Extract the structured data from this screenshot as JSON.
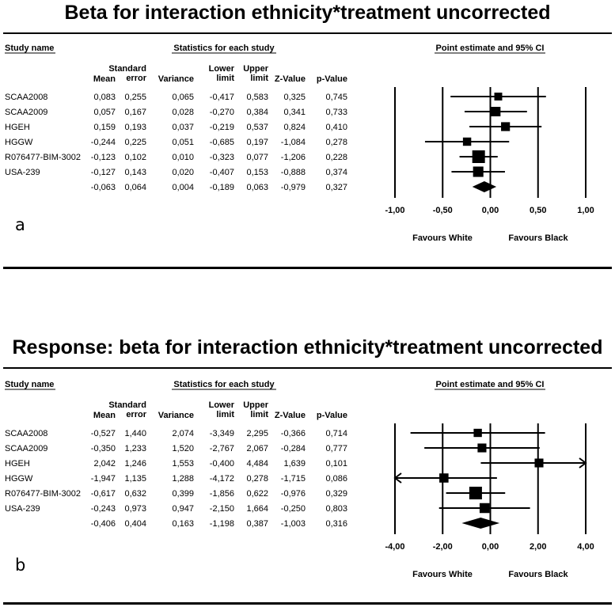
{
  "panels": [
    {
      "title": "Beta for interaction ethnicity*treatment uncorrected",
      "label": "a",
      "headers": {
        "study_name": "Study name",
        "stats_group": "Statistics for each study",
        "plot_group": "Point estimate and 95% CI",
        "columns": [
          {
            "lines": [
              "Mean"
            ]
          },
          {
            "lines": [
              "Standard",
              "error"
            ]
          },
          {
            "lines": [
              "Variance"
            ]
          },
          {
            "lines": [
              "Lower",
              "limit"
            ]
          },
          {
            "lines": [
              "Upper",
              "limit"
            ]
          },
          {
            "lines": [
              "Z-Value"
            ]
          },
          {
            "lines": [
              "p-Value"
            ]
          }
        ]
      },
      "rows": [
        {
          "study": "SCAA2008",
          "values": [
            "0,083",
            "0,255",
            "0,065",
            "-0,417",
            "0,583",
            "0,325",
            "0,745"
          ]
        },
        {
          "study": "SCAA2009",
          "values": [
            "0,057",
            "0,167",
            "0,028",
            "-0,270",
            "0,384",
            "0,341",
            "0,733"
          ]
        },
        {
          "study": "HGEH",
          "values": [
            "0,159",
            "0,193",
            "0,037",
            "-0,219",
            "0,537",
            "0,824",
            "0,410"
          ]
        },
        {
          "study": "HGGW",
          "values": [
            "-0,244",
            "0,225",
            "0,051",
            "-0,685",
            "0,197",
            "-1,084",
            "0,278"
          ]
        },
        {
          "study": "R076477-BIM-3002",
          "values": [
            "-0,123",
            "0,102",
            "0,010",
            "-0,323",
            "0,077",
            "-1,206",
            "0,228"
          ]
        },
        {
          "study": "USA-239",
          "values": [
            "-0,127",
            "0,143",
            "0,020",
            "-0,407",
            "0,153",
            "-0,888",
            "0,374"
          ]
        }
      ],
      "summary": {
        "values": [
          "-0,063",
          "0,064",
          "0,004",
          "-0,189",
          "0,063",
          "-0,979",
          "0,327"
        ]
      },
      "chart_data": {
        "type": "forest",
        "title": "Point estimate and 95% CI",
        "xlim": [
          -1,
          1
        ],
        "ticks": [
          -1,
          -0.5,
          0,
          0.5,
          1
        ],
        "tick_labels": [
          "-1,00",
          "-0,50",
          "0,00",
          "0,50",
          "1,00"
        ],
        "favours_left": "Favours White",
        "favours_right": "Favours Black",
        "studies": [
          {
            "name": "SCAA2008",
            "est": 0.083,
            "lo": -0.417,
            "hi": 0.583,
            "weight": 0.065
          },
          {
            "name": "SCAA2009",
            "est": 0.057,
            "lo": -0.27,
            "hi": 0.384,
            "weight": 0.028
          },
          {
            "name": "HGEH",
            "est": 0.159,
            "lo": -0.219,
            "hi": 0.537,
            "weight": 0.037
          },
          {
            "name": "HGGW",
            "est": -0.244,
            "lo": -0.685,
            "hi": 0.197,
            "weight": 0.051
          },
          {
            "name": "R076477-BIM-3002",
            "est": -0.123,
            "lo": -0.323,
            "hi": 0.077,
            "weight": 0.01
          },
          {
            "name": "USA-239",
            "est": -0.127,
            "lo": -0.407,
            "hi": 0.153,
            "weight": 0.02
          }
        ],
        "summary": {
          "est": -0.063,
          "lo": -0.189,
          "hi": 0.063
        }
      }
    },
    {
      "title": "Response: beta for interaction ethnicity*treatment uncorrected",
      "label": "b",
      "headers": {
        "study_name": "Study name",
        "stats_group": "Statistics for each study",
        "plot_group": "Point estimate and 95% CI",
        "columns": [
          {
            "lines": [
              "Mean"
            ]
          },
          {
            "lines": [
              "Standard",
              "error"
            ]
          },
          {
            "lines": [
              "Variance"
            ]
          },
          {
            "lines": [
              "Lower",
              "limit"
            ]
          },
          {
            "lines": [
              "Upper",
              "limit"
            ]
          },
          {
            "lines": [
              "Z-Value"
            ]
          },
          {
            "lines": [
              "p-Value"
            ]
          }
        ]
      },
      "rows": [
        {
          "study": "SCAA2008",
          "values": [
            "-0,527",
            "1,440",
            "2,074",
            "-3,349",
            "2,295",
            "-0,366",
            "0,714"
          ]
        },
        {
          "study": "SCAA2009",
          "values": [
            "-0,350",
            "1,233",
            "1,520",
            "-2,767",
            "2,067",
            "-0,284",
            "0,777"
          ]
        },
        {
          "study": "HGEH",
          "values": [
            "2,042",
            "1,246",
            "1,553",
            "-0,400",
            "4,484",
            "1,639",
            "0,101"
          ]
        },
        {
          "study": "HGGW",
          "values": [
            "-1,947",
            "1,135",
            "1,288",
            "-4,172",
            "0,278",
            "-1,715",
            "0,086"
          ]
        },
        {
          "study": "R076477-BIM-3002",
          "values": [
            "-0,617",
            "0,632",
            "0,399",
            "-1,856",
            "0,622",
            "-0,976",
            "0,329"
          ]
        },
        {
          "study": "USA-239",
          "values": [
            "-0,243",
            "0,973",
            "0,947",
            "-2,150",
            "1,664",
            "-0,250",
            "0,803"
          ]
        }
      ],
      "summary": {
        "values": [
          "-0,406",
          "0,404",
          "0,163",
          "-1,198",
          "0,387",
          "-1,003",
          "0,316"
        ]
      },
      "chart_data": {
        "type": "forest",
        "title": "Point estimate and 95% CI",
        "xlim": [
          -4,
          4
        ],
        "ticks": [
          -4,
          -2,
          0,
          2,
          4
        ],
        "tick_labels": [
          "-4,00",
          "-2,00",
          "0,00",
          "2,00",
          "4,00"
        ],
        "favours_left": "Favours White",
        "favours_right": "Favours Black",
        "studies": [
          {
            "name": "SCAA2008",
            "est": -0.527,
            "lo": -3.349,
            "hi": 2.295,
            "weight": 2.074
          },
          {
            "name": "SCAA2009",
            "est": -0.35,
            "lo": -2.767,
            "hi": 2.067,
            "weight": 1.52
          },
          {
            "name": "HGEH",
            "est": 2.042,
            "lo": -0.4,
            "hi": 4.484,
            "weight": 1.553
          },
          {
            "name": "HGGW",
            "est": -1.947,
            "lo": -4.172,
            "hi": 0.278,
            "weight": 1.288
          },
          {
            "name": "R076477-BIM-3002",
            "est": -0.617,
            "lo": -1.856,
            "hi": 0.622,
            "weight": 0.399
          },
          {
            "name": "USA-239",
            "est": -0.243,
            "lo": -2.15,
            "hi": 1.664,
            "weight": 0.947
          }
        ],
        "summary": {
          "est": -0.406,
          "lo": -1.198,
          "hi": 0.387
        }
      }
    }
  ]
}
